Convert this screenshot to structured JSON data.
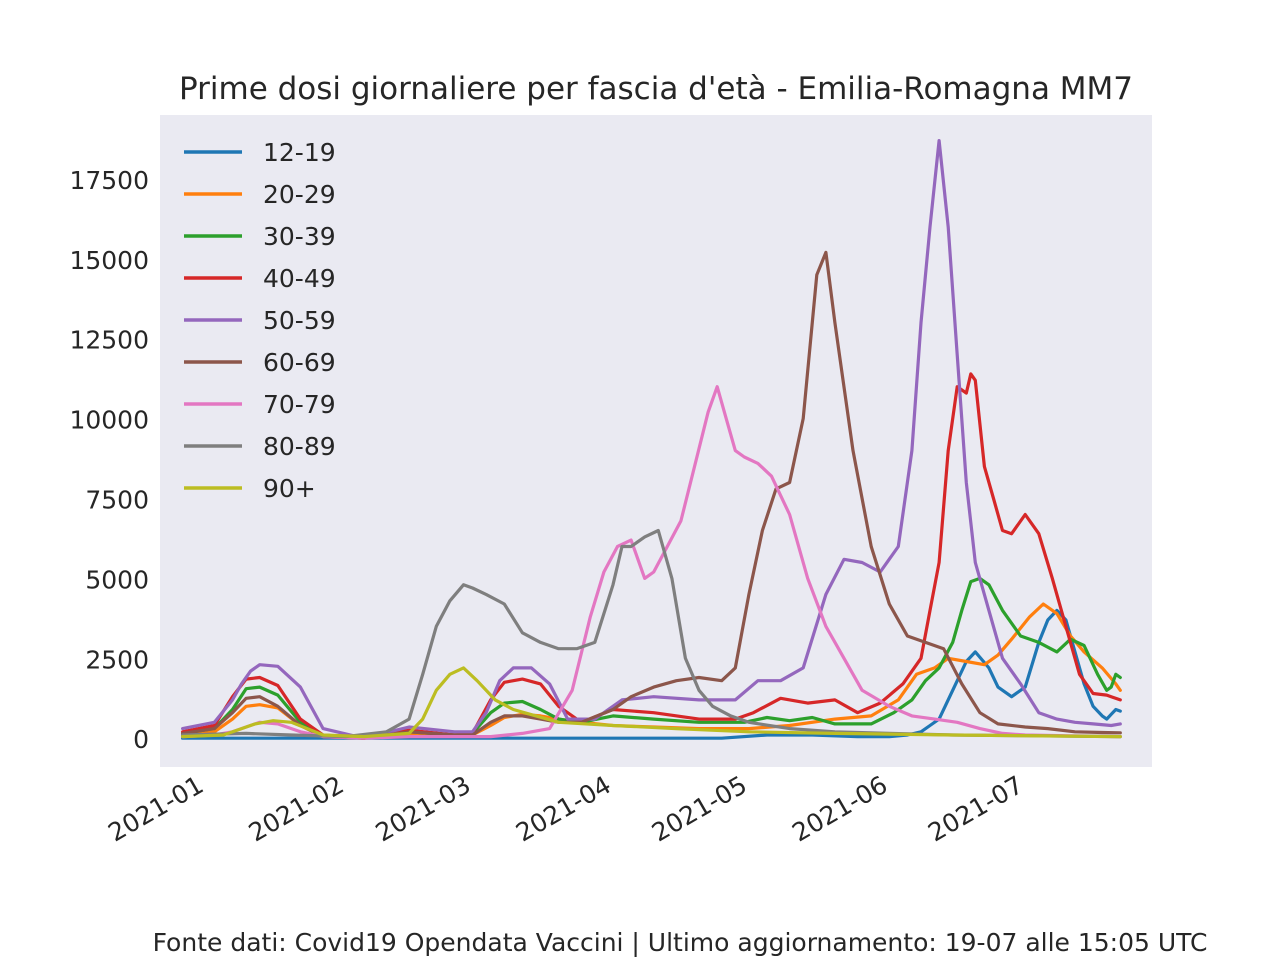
{
  "chart_data": {
    "type": "line",
    "title": "Prime dosi giornaliere per fascia d'età - Emilia-Romagna MM7",
    "xlabel": "",
    "ylabel": "",
    "x_ticks": [
      "2021-01",
      "2021-02",
      "2021-03",
      "2021-04",
      "2021-05",
      "2021-06",
      "2021-07"
    ],
    "y_ticks": [
      0,
      2500,
      5000,
      7500,
      10000,
      12500,
      15000,
      17500
    ],
    "xlim": [
      "2020-12-22",
      "2021-07-29"
    ],
    "ylim": [
      -900,
      19500
    ],
    "grid": false,
    "legend_position": "top-left",
    "series": [
      {
        "name": "12-19",
        "color": "#1f77b4",
        "x": [
          "2020-12-27",
          "2021-01-15",
          "2021-02-15",
          "2021-03-15",
          "2021-04-15",
          "2021-04-25",
          "2021-05-05",
          "2021-05-15",
          "2021-05-25",
          "2021-06-01",
          "2021-06-05",
          "2021-06-08",
          "2021-06-10",
          "2021-06-12",
          "2021-06-15",
          "2021-06-18",
          "2021-06-20",
          "2021-06-23",
          "2021-06-25",
          "2021-06-28",
          "2021-07-01",
          "2021-07-04",
          "2021-07-06",
          "2021-07-08",
          "2021-07-10",
          "2021-07-12",
          "2021-07-14",
          "2021-07-16",
          "2021-07-18",
          "2021-07-19",
          "2021-07-20",
          "2021-07-21",
          "2021-07-22"
        ],
        "values": [
          0,
          0,
          0,
          0,
          0,
          0,
          100,
          100,
          50,
          50,
          100,
          200,
          400,
          600,
          1500,
          2400,
          2700,
          2200,
          1600,
          1300,
          1600,
          3000,
          3700,
          4000,
          3700,
          2700,
          1700,
          1000,
          700,
          600,
          750,
          900,
          850
        ]
      },
      {
        "name": "20-29",
        "color": "#ff7f0e",
        "x": [
          "2020-12-27",
          "2021-01-03",
          "2021-01-07",
          "2021-01-10",
          "2021-01-13",
          "2021-01-17",
          "2021-01-22",
          "2021-01-27",
          "2021-02-05",
          "2021-02-15",
          "2021-02-25",
          "2021-03-01",
          "2021-03-05",
          "2021-03-08",
          "2021-03-12",
          "2021-03-16",
          "2021-03-20",
          "2021-03-25",
          "2021-04-01",
          "2021-04-10",
          "2021-04-20",
          "2021-05-01",
          "2021-05-10",
          "2021-05-20",
          "2021-05-28",
          "2021-06-03",
          "2021-06-07",
          "2021-06-11",
          "2021-06-14",
          "2021-06-18",
          "2021-06-22",
          "2021-06-25",
          "2021-06-28",
          "2021-07-02",
          "2021-07-05",
          "2021-07-08",
          "2021-07-11",
          "2021-07-14",
          "2021-07-18",
          "2021-07-21",
          "2021-07-22"
        ],
        "values": [
          100,
          200,
          600,
          1000,
          1050,
          950,
          400,
          50,
          0,
          100,
          100,
          100,
          400,
          650,
          750,
          700,
          600,
          500,
          400,
          350,
          300,
          300,
          400,
          600,
          700,
          1200,
          2000,
          2200,
          2500,
          2400,
          2300,
          2600,
          3100,
          3800,
          4200,
          3900,
          3200,
          2700,
          2200,
          1700,
          1500
        ]
      },
      {
        "name": "30-39",
        "color": "#2ca02c",
        "x": [
          "2020-12-27",
          "2021-01-03",
          "2021-01-07",
          "2021-01-10",
          "2021-01-13",
          "2021-01-17",
          "2021-01-22",
          "2021-01-27",
          "2021-02-05",
          "2021-02-15",
          "2021-02-25",
          "2021-03-01",
          "2021-03-05",
          "2021-03-08",
          "2021-03-12",
          "2021-03-16",
          "2021-03-20",
          "2021-03-25",
          "2021-04-01",
          "2021-04-10",
          "2021-04-20",
          "2021-04-30",
          "2021-05-05",
          "2021-05-10",
          "2021-05-15",
          "2021-05-20",
          "2021-05-28",
          "2021-06-02",
          "2021-06-06",
          "2021-06-09",
          "2021-06-12",
          "2021-06-15",
          "2021-06-17",
          "2021-06-19",
          "2021-06-21",
          "2021-06-23",
          "2021-06-26",
          "2021-06-30",
          "2021-07-04",
          "2021-07-08",
          "2021-07-11",
          "2021-07-14",
          "2021-07-17",
          "2021-07-19",
          "2021-07-20",
          "2021-07-21",
          "2021-07-22"
        ],
        "values": [
          150,
          300,
          900,
          1550,
          1600,
          1350,
          500,
          100,
          0,
          200,
          100,
          150,
          800,
          1100,
          1150,
          900,
          600,
          500,
          700,
          600,
          500,
          500,
          650,
          550,
          650,
          450,
          450,
          800,
          1200,
          1800,
          2200,
          3000,
          4000,
          4900,
          5000,
          4800,
          4000,
          3200,
          3000,
          2700,
          3100,
          2900,
          2000,
          1500,
          1600,
          2000,
          1900
        ]
      },
      {
        "name": "40-49",
        "color": "#d62728",
        "x": [
          "2020-12-27",
          "2021-01-03",
          "2021-01-07",
          "2021-01-10",
          "2021-01-13",
          "2021-01-17",
          "2021-01-22",
          "2021-01-27",
          "2021-02-05",
          "2021-02-15",
          "2021-02-25",
          "2021-03-01",
          "2021-03-05",
          "2021-03-08",
          "2021-03-12",
          "2021-03-16",
          "2021-03-20",
          "2021-03-25",
          "2021-04-01",
          "2021-04-10",
          "2021-04-20",
          "2021-04-28",
          "2021-05-02",
          "2021-05-08",
          "2021-05-14",
          "2021-05-20",
          "2021-05-25",
          "2021-05-30",
          "2021-06-04",
          "2021-06-08",
          "2021-06-10",
          "2021-06-12",
          "2021-06-14",
          "2021-06-16",
          "2021-06-18",
          "2021-06-19",
          "2021-06-20",
          "2021-06-22",
          "2021-06-24",
          "2021-06-26",
          "2021-06-28",
          "2021-07-01",
          "2021-07-04",
          "2021-07-07",
          "2021-07-10",
          "2021-07-13",
          "2021-07-16",
          "2021-07-19",
          "2021-07-20",
          "2021-07-22"
        ],
        "values": [
          200,
          400,
          1300,
          1850,
          1900,
          1650,
          600,
          100,
          0,
          250,
          100,
          150,
          1200,
          1750,
          1850,
          1700,
          1000,
          500,
          900,
          800,
          600,
          600,
          800,
          1250,
          1100,
          1200,
          800,
          1100,
          1700,
          2500,
          4000,
          5500,
          9000,
          11000,
          10800,
          11400,
          11200,
          8500,
          7500,
          6500,
          6400,
          7000,
          6400,
          5000,
          3500,
          2000,
          1400,
          1350,
          1300,
          1200
        ]
      },
      {
        "name": "50-59",
        "color": "#9467bd",
        "x": [
          "2020-12-27",
          "2021-01-03",
          "2021-01-07",
          "2021-01-09",
          "2021-01-11",
          "2021-01-13",
          "2021-01-17",
          "2021-01-22",
          "2021-01-27",
          "2021-02-05",
          "2021-02-15",
          "2021-02-25",
          "2021-03-01",
          "2021-03-04",
          "2021-03-07",
          "2021-03-10",
          "2021-03-14",
          "2021-03-18",
          "2021-03-22",
          "2021-03-28",
          "2021-04-03",
          "2021-04-10",
          "2021-04-20",
          "2021-04-28",
          "2021-05-03",
          "2021-05-08",
          "2021-05-13",
          "2021-05-18",
          "2021-05-22",
          "2021-05-26",
          "2021-05-30",
          "2021-06-03",
          "2021-06-06",
          "2021-06-08",
          "2021-06-10",
          "2021-06-12",
          "2021-06-14",
          "2021-06-16",
          "2021-06-18",
          "2021-06-20",
          "2021-06-23",
          "2021-06-26",
          "2021-06-30",
          "2021-07-04",
          "2021-07-08",
          "2021-07-12",
          "2021-07-16",
          "2021-07-20",
          "2021-07-22"
        ],
        "values": [
          300,
          500,
          1200,
          1700,
          2100,
          2300,
          2250,
          1600,
          300,
          0,
          350,
          200,
          200,
          800,
          1800,
          2200,
          2200,
          1700,
          600,
          600,
          1200,
          1300,
          1200,
          1200,
          1800,
          1800,
          2200,
          4500,
          5600,
          5500,
          5200,
          6000,
          9000,
          13000,
          16000,
          18700,
          16000,
          12000,
          8000,
          5500,
          4000,
          2500,
          1700,
          800,
          600,
          500,
          450,
          400,
          450
        ]
      },
      {
        "name": "60-69",
        "color": "#8c564b",
        "x": [
          "2020-12-27",
          "2021-01-03",
          "2021-01-07",
          "2021-01-10",
          "2021-01-13",
          "2021-01-17",
          "2021-01-22",
          "2021-01-27",
          "2021-02-05",
          "2021-02-15",
          "2021-02-25",
          "2021-03-01",
          "2021-03-05",
          "2021-03-08",
          "2021-03-12",
          "2021-03-16",
          "2021-03-20",
          "2021-03-25",
          "2021-04-01",
          "2021-04-05",
          "2021-04-10",
          "2021-04-15",
          "2021-04-20",
          "2021-04-25",
          "2021-04-28",
          "2021-05-01",
          "2021-05-04",
          "2021-05-07",
          "2021-05-10",
          "2021-05-13",
          "2021-05-16",
          "2021-05-18",
          "2021-05-20",
          "2021-05-24",
          "2021-05-28",
          "2021-06-01",
          "2021-06-05",
          "2021-06-09",
          "2021-06-13",
          "2021-06-17",
          "2021-06-21",
          "2021-06-25",
          "2021-07-01",
          "2021-07-06",
          "2021-07-12",
          "2021-07-18",
          "2021-07-22"
        ],
        "values": [
          150,
          300,
          800,
          1250,
          1300,
          1000,
          400,
          50,
          0,
          200,
          100,
          100,
          500,
          700,
          700,
          600,
          500,
          500,
          900,
          1300,
          1600,
          1800,
          1900,
          1800,
          2200,
          4500,
          6500,
          7800,
          8000,
          10000,
          14500,
          15200,
          13000,
          9000,
          6000,
          4200,
          3200,
          3000,
          2800,
          1700,
          800,
          450,
          350,
          300,
          200,
          180,
          170
        ]
      },
      {
        "name": "70-79",
        "color": "#e377c2",
        "x": [
          "2020-12-27",
          "2021-01-03",
          "2021-01-07",
          "2021-01-10",
          "2021-01-13",
          "2021-01-17",
          "2021-01-22",
          "2021-01-27",
          "2021-02-05",
          "2021-02-15",
          "2021-02-25",
          "2021-03-05",
          "2021-03-12",
          "2021-03-18",
          "2021-03-23",
          "2021-03-27",
          "2021-03-30",
          "2021-04-02",
          "2021-04-05",
          "2021-04-08",
          "2021-04-10",
          "2021-04-13",
          "2021-04-16",
          "2021-04-19",
          "2021-04-22",
          "2021-04-24",
          "2021-04-26",
          "2021-04-28",
          "2021-04-30",
          "2021-05-03",
          "2021-05-06",
          "2021-05-10",
          "2021-05-14",
          "2021-05-18",
          "2021-05-22",
          "2021-05-26",
          "2021-06-01",
          "2021-06-06",
          "2021-06-11",
          "2021-06-16",
          "2021-06-21",
          "2021-06-26",
          "2021-07-01",
          "2021-07-10",
          "2021-07-22"
        ],
        "values": [
          50,
          100,
          200,
          350,
          500,
          450,
          200,
          50,
          0,
          50,
          50,
          50,
          150,
          300,
          1500,
          3800,
          5200,
          6000,
          6200,
          5000,
          5200,
          6000,
          6800,
          8500,
          10200,
          11000,
          10000,
          9000,
          8800,
          8600,
          8200,
          7000,
          5000,
          3500,
          2500,
          1500,
          1000,
          700,
          600,
          500,
          300,
          150,
          100,
          80,
          50
        ]
      },
      {
        "name": "80-89",
        "color": "#7f7f7f",
        "x": [
          "2020-12-27",
          "2021-01-10",
          "2021-01-20",
          "2021-02-01",
          "2021-02-10",
          "2021-02-15",
          "2021-02-18",
          "2021-02-21",
          "2021-02-24",
          "2021-02-27",
          "2021-03-01",
          "2021-03-04",
          "2021-03-08",
          "2021-03-12",
          "2021-03-16",
          "2021-03-20",
          "2021-03-24",
          "2021-03-28",
          "2021-04-01",
          "2021-04-03",
          "2021-04-05",
          "2021-04-08",
          "2021-04-11",
          "2021-04-14",
          "2021-04-17",
          "2021-04-20",
          "2021-04-23",
          "2021-04-27",
          "2021-05-01",
          "2021-05-10",
          "2021-05-20",
          "2021-06-01",
          "2021-06-15",
          "2021-07-01",
          "2021-07-22"
        ],
        "values": [
          100,
          150,
          100,
          50,
          200,
          600,
          2000,
          3500,
          4300,
          4800,
          4700,
          4500,
          4200,
          3300,
          3000,
          2800,
          2800,
          3000,
          4800,
          6000,
          6000,
          6300,
          6500,
          5000,
          2500,
          1500,
          1000,
          700,
          500,
          300,
          200,
          150,
          100,
          80,
          50
        ]
      },
      {
        "name": "90+",
        "color": "#bcbd22",
        "x": [
          "2020-12-27",
          "2021-01-05",
          "2021-01-12",
          "2021-01-16",
          "2021-01-20",
          "2021-01-27",
          "2021-02-05",
          "2021-02-15",
          "2021-02-18",
          "2021-02-21",
          "2021-02-24",
          "2021-02-27",
          "2021-03-02",
          "2021-03-06",
          "2021-03-10",
          "2021-03-15",
          "2021-03-20",
          "2021-04-01",
          "2021-04-15",
          "2021-05-01",
          "2021-05-20",
          "2021-06-15",
          "2021-07-22"
        ],
        "values": [
          50,
          100,
          450,
          550,
          500,
          100,
          50,
          150,
          600,
          1500,
          2000,
          2200,
          1800,
          1200,
          900,
          700,
          500,
          400,
          300,
          200,
          150,
          100,
          50
        ]
      }
    ]
  },
  "footer": "Fonte dati: Covid19 Opendata Vaccini | Ultimo aggiornamento: 19-07 alle 15:05 UTC"
}
